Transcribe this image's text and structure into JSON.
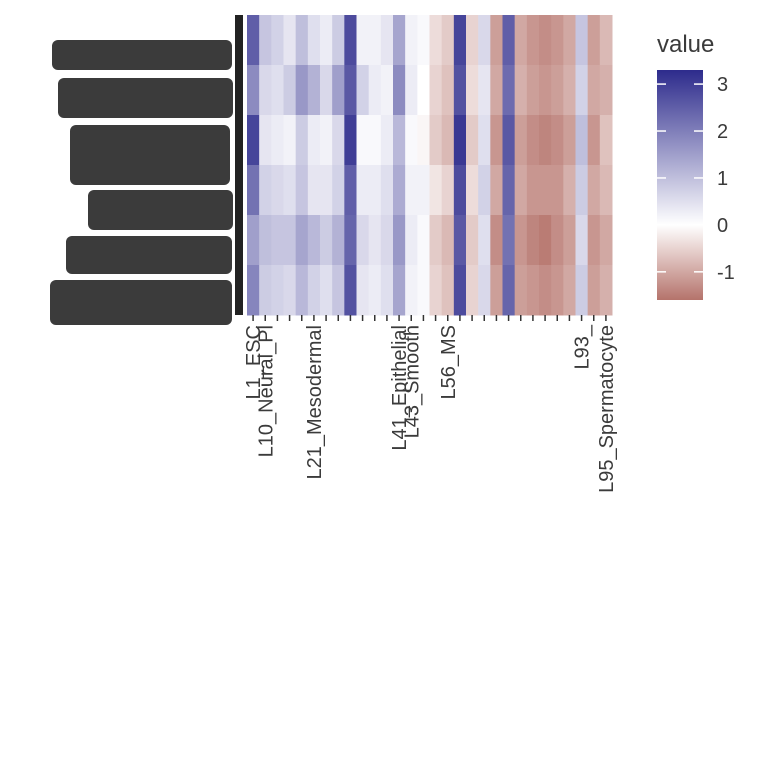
{
  "chart_data": {
    "type": "heatmap",
    "categories": [
      "L1_ESC",
      "L10_Neural_Pl",
      null,
      null,
      null,
      "L21_Mesodermal",
      null,
      null,
      null,
      null,
      null,
      null,
      "L41_Epithelial",
      "L43_Smooth",
      null,
      null,
      "L56_MS",
      null,
      null,
      null,
      null,
      null,
      null,
      null,
      null,
      null,
      null,
      "L93_",
      null,
      "L95_Spermatocyte"
    ],
    "rows": [
      [
        2.5,
        0.9,
        0.7,
        0.4,
        1.0,
        0.5,
        0.3,
        0.8,
        2.8,
        0.2,
        0.2,
        0.4,
        1.4,
        0.2,
        0.1,
        -0.4,
        -0.6,
        2.9,
        -0.5,
        0.6,
        -1.1,
        2.5,
        -1.0,
        -1.2,
        -1.3,
        -1.2,
        -1.0,
        0.9,
        -1.1,
        -0.8
      ],
      [
        1.8,
        0.6,
        0.5,
        0.8,
        1.6,
        1.2,
        0.6,
        1.5,
        2.6,
        0.7,
        0.3,
        0.2,
        1.8,
        0.3,
        0.0,
        -0.5,
        -0.7,
        2.7,
        -0.4,
        0.4,
        -1.0,
        2.3,
        -0.9,
        -1.1,
        -1.2,
        -1.1,
        -0.9,
        0.7,
        -1.0,
        -0.9
      ],
      [
        2.9,
        0.4,
        0.3,
        0.2,
        0.8,
        0.3,
        0.2,
        0.6,
        3.0,
        0.1,
        0.1,
        0.3,
        1.1,
        0.1,
        -0.1,
        -0.6,
        -0.8,
        3.1,
        -0.6,
        0.5,
        -1.2,
        2.6,
        -1.1,
        -1.3,
        -1.4,
        -1.3,
        -1.1,
        1.0,
        -1.2,
        -0.7
      ],
      [
        2.2,
        0.7,
        0.6,
        0.5,
        0.9,
        0.4,
        0.4,
        0.7,
        2.5,
        0.3,
        0.3,
        0.5,
        1.3,
        0.2,
        0.2,
        -0.3,
        -0.5,
        2.8,
        -0.4,
        0.7,
        -1.0,
        2.4,
        -1.0,
        -1.2,
        -1.2,
        -1.2,
        -0.9,
        0.8,
        -1.0,
        -0.8
      ],
      [
        1.5,
        1.0,
        0.9,
        0.9,
        1.4,
        1.1,
        0.8,
        1.2,
        2.4,
        0.6,
        0.4,
        0.6,
        1.6,
        0.3,
        0.1,
        -0.6,
        -0.8,
        2.6,
        -0.6,
        0.5,
        -1.3,
        2.2,
        -1.2,
        -1.4,
        -1.5,
        -1.3,
        -1.1,
        0.6,
        -1.2,
        -1.0
      ],
      [
        1.9,
        0.8,
        0.7,
        0.6,
        1.1,
        0.7,
        0.5,
        0.9,
        2.7,
        0.4,
        0.3,
        0.5,
        1.4,
        0.2,
        0.1,
        -0.5,
        -0.7,
        2.8,
        -0.5,
        0.6,
        -1.1,
        2.4,
        -1.1,
        -1.2,
        -1.3,
        -1.2,
        -1.0,
        0.8,
        -1.1,
        -0.9
      ]
    ],
    "legend_title": "value",
    "clim": [
      -1.6,
      3.3
    ],
    "cticks": [
      3,
      2,
      1,
      0,
      -1
    ],
    "colors": {
      "low": "#b5736b",
      "mid": "#ffffff",
      "high": "#2d2b8c"
    }
  }
}
